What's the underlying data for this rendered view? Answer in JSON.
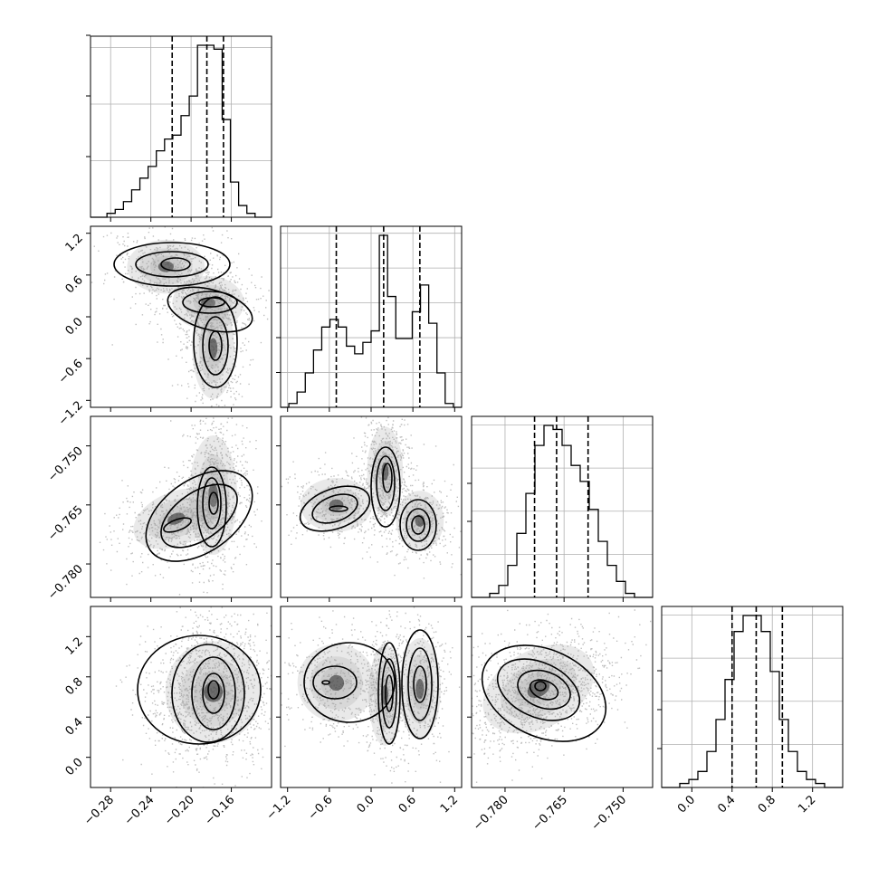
{
  "chart_data": {
    "type": "corner",
    "parameters": [
      {
        "range": [
          -0.3,
          -0.12
        ],
        "ticks": [
          -0.28,
          -0.24,
          -0.2,
          -0.16
        ],
        "tick_labels": [
          "−0.28",
          "−0.24",
          "−0.20",
          "−0.16"
        ]
      },
      {
        "range": [
          -1.3,
          1.3
        ],
        "ticks": [
          -1.2,
          -0.6,
          0.0,
          0.6,
          1.2
        ],
        "tick_labels": [
          "−1.2",
          "−0.6",
          "0.0",
          "0.6",
          "1.2"
        ]
      },
      {
        "range": [
          -0.7885,
          -0.7425
        ],
        "ticks": [
          -0.78,
          -0.765,
          -0.75
        ],
        "tick_labels": [
          "−0.780",
          "−0.765",
          "−0.750"
        ]
      },
      {
        "range": [
          -0.3,
          1.5
        ],
        "ticks": [
          0.0,
          0.4,
          0.8,
          1.2
        ],
        "tick_labels": [
          "0.0",
          "0.4",
          "0.8",
          "1.2"
        ]
      }
    ],
    "histograms": [
      {
        "param": 0,
        "bins": [
          -0.3,
          -0.12
        ],
        "counts": [
          0,
          0,
          1,
          2,
          4,
          7,
          10,
          13,
          17,
          20,
          21,
          26,
          31,
          44,
          44,
          43,
          25,
          9,
          3,
          1,
          0,
          0
        ],
        "quantiles": [
          -0.2188,
          -0.1843,
          -0.1678
        ]
      },
      {
        "param": 1,
        "bins": [
          -1.3,
          1.3
        ],
        "counts": [
          0,
          1,
          4,
          9,
          15,
          21,
          23,
          21,
          16,
          14,
          17,
          20,
          45,
          29,
          18,
          18,
          25,
          32,
          22,
          9,
          1,
          0
        ],
        "quantiles": [
          -0.5,
          0.18,
          0.7
        ]
      },
      {
        "param": 2,
        "bins": [
          -0.7885,
          -0.7425
        ],
        "counts": [
          0,
          0,
          1,
          3,
          8,
          16,
          26,
          38,
          43,
          42,
          38,
          33,
          29,
          22,
          14,
          8,
          4,
          1,
          0,
          0
        ],
        "quantiles": [
          -0.7725,
          -0.7669,
          -0.7589
        ]
      },
      {
        "param": 3,
        "bins": [
          -0.3,
          1.5
        ],
        "counts": [
          0,
          0,
          1,
          2,
          4,
          9,
          17,
          27,
          39,
          43,
          43,
          39,
          29,
          17,
          9,
          4,
          2,
          1,
          0,
          0
        ],
        "quantiles": [
          0.4,
          0.64,
          0.9
        ]
      }
    ],
    "density_modes": {
      "1_0": [
        {
          "x": -0.225,
          "y": 0.72
        },
        {
          "x": -0.183,
          "y": 0.2
        },
        {
          "x": -0.178,
          "y": -0.45
        }
      ],
      "2_0": [
        {
          "x": -0.178,
          "y": -0.7625
        },
        {
          "x": -0.215,
          "y": -0.7685
        }
      ],
      "2_1": [
        {
          "x": 0.2,
          "y": -0.7565
        },
        {
          "x": 0.7,
          "y": -0.769
        },
        {
          "x": -0.5,
          "y": -0.765
        }
      ],
      "3_0": [
        {
          "x": -0.178,
          "y": 0.65
        }
      ],
      "3_1": [
        {
          "x": 0.2,
          "y": 0.62
        },
        {
          "x": 0.7,
          "y": 0.68
        },
        {
          "x": -0.5,
          "y": 0.74
        }
      ],
      "3_2": [
        {
          "x": -0.7715,
          "y": 0.68
        }
      ]
    }
  }
}
